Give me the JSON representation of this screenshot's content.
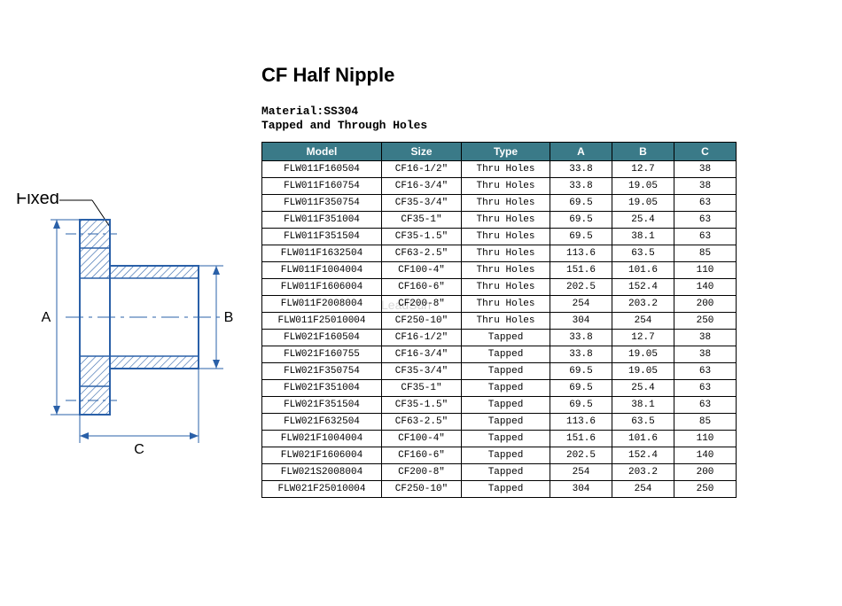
{
  "title": "CF Half Nipple",
  "material_line": "Material:SS304",
  "holes_line": "Tapped and Through Holes",
  "diagram": {
    "fixed_label": "Fixed",
    "dim_A": "A",
    "dim_B": "B",
    "dim_C": "C",
    "stroke": "#2a60a8",
    "hatch": "#2a60a8"
  },
  "table": {
    "header_bg": "#3a7a88",
    "header_fg": "#ffffff",
    "border": "#000000",
    "columns": [
      "Model",
      "Size",
      "Type",
      "A",
      "B",
      "C"
    ],
    "rows": [
      [
        "FLW011F160504",
        "CF16-1/2\"",
        "Thru Holes",
        "33.8",
        "12.7",
        "38"
      ],
      [
        "FLW011F160754",
        "CF16-3/4\"",
        "Thru Holes",
        "33.8",
        "19.05",
        "38"
      ],
      [
        "FLW011F350754",
        "CF35-3/4\"",
        "Thru Holes",
        "69.5",
        "19.05",
        "63"
      ],
      [
        "FLW011F351004",
        "CF35-1\"",
        "Thru Holes",
        "69.5",
        "25.4",
        "63"
      ],
      [
        "FLW011F351504",
        "CF35-1.5\"",
        "Thru Holes",
        "69.5",
        "38.1",
        "63"
      ],
      [
        "FLW011F1632504",
        "CF63-2.5\"",
        "Thru Holes",
        "113.6",
        "63.5",
        "85"
      ],
      [
        "FLW011F1004004",
        "CF100-4\"",
        "Thru Holes",
        "151.6",
        "101.6",
        "110"
      ],
      [
        "FLW011F1606004",
        "CF160-6\"",
        "Thru Holes",
        "202.5",
        "152.4",
        "140"
      ],
      [
        "FLW011F2008004",
        "CF200-8\"",
        "Thru Holes",
        "254",
        "203.2",
        "200"
      ],
      [
        "FLW011F25010004",
        "CF250-10\"",
        "Thru Holes",
        "304",
        "254",
        "250"
      ],
      [
        "FLW021F160504",
        "CF16-1/2\"",
        "Tapped",
        "33.8",
        "12.7",
        "38"
      ],
      [
        "FLW021F160755",
        "CF16-3/4\"",
        "Tapped",
        "33.8",
        "19.05",
        "38"
      ],
      [
        "FLW021F350754",
        "CF35-3/4\"",
        "Tapped",
        "69.5",
        "19.05",
        "63"
      ],
      [
        "FLW021F351004",
        "CF35-1\"",
        "Tapped",
        "69.5",
        "25.4",
        "63"
      ],
      [
        "FLW021F351504",
        "CF35-1.5\"",
        "Tapped",
        "69.5",
        "38.1",
        "63"
      ],
      [
        "FLW021F632504",
        "CF63-2.5\"",
        "Tapped",
        "113.6",
        "63.5",
        "85"
      ],
      [
        "FLW021F1004004",
        "CF100-4\"",
        "Tapped",
        "151.6",
        "101.6",
        "110"
      ],
      [
        "FLW021F1606004",
        "CF160-6\"",
        "Tapped",
        "202.5",
        "152.4",
        "140"
      ],
      [
        "FLW021S2008004",
        "CF200-8\"",
        "Tapped",
        "254",
        "203.2",
        "200"
      ],
      [
        "FLW021F25010004",
        "CF250-10\"",
        "Tapped",
        "304",
        "254",
        "250"
      ]
    ]
  },
  "watermark": "LeadSun"
}
